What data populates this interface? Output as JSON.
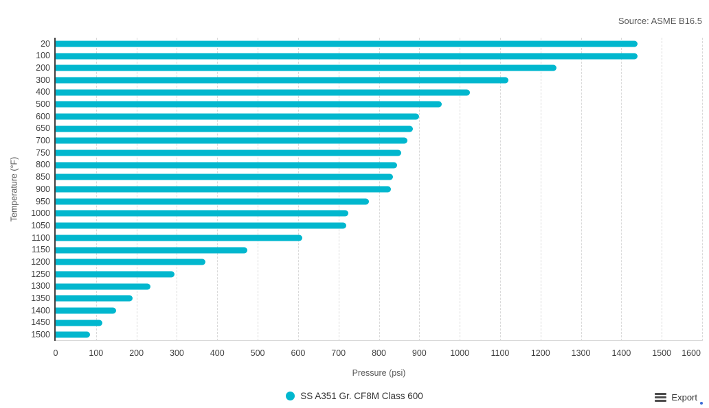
{
  "source_note": "Source: ASME B16.5",
  "chart_data": {
    "type": "bar",
    "orientation": "horizontal",
    "title": "",
    "categories": [
      "20",
      "100",
      "200",
      "300",
      "400",
      "500",
      "600",
      "650",
      "700",
      "750",
      "800",
      "850",
      "900",
      "950",
      "1000",
      "1050",
      "1100",
      "1150",
      "1200",
      "1250",
      "1300",
      "1350",
      "1400",
      "1450",
      "1500"
    ],
    "series": [
      {
        "name": "SS A351 Gr. CF8M Class 600",
        "values": [
          1440,
          1440,
          1240,
          1120,
          1025,
          955,
          900,
          885,
          870,
          855,
          845,
          835,
          830,
          775,
          725,
          720,
          610,
          475,
          370,
          295,
          235,
          190,
          150,
          115,
          85
        ]
      }
    ],
    "xlabel": "Pressure (psi)",
    "ylabel": "Temperature (°F)",
    "xlim": [
      0,
      1600
    ],
    "xtick_step": 100,
    "grid": "vertical-dashed",
    "legend_position": "bottom-center"
  },
  "legend": {
    "label": "SS A351 Gr. CF8M Class 600"
  },
  "export_button": {
    "label": "Export"
  },
  "colors": {
    "bar": "#01b7ce",
    "axis_line": "#404040",
    "grid_line": "#d9d9d9",
    "tick_text": "#404040",
    "title_text": "#595959",
    "legend_text": "#333333"
  }
}
